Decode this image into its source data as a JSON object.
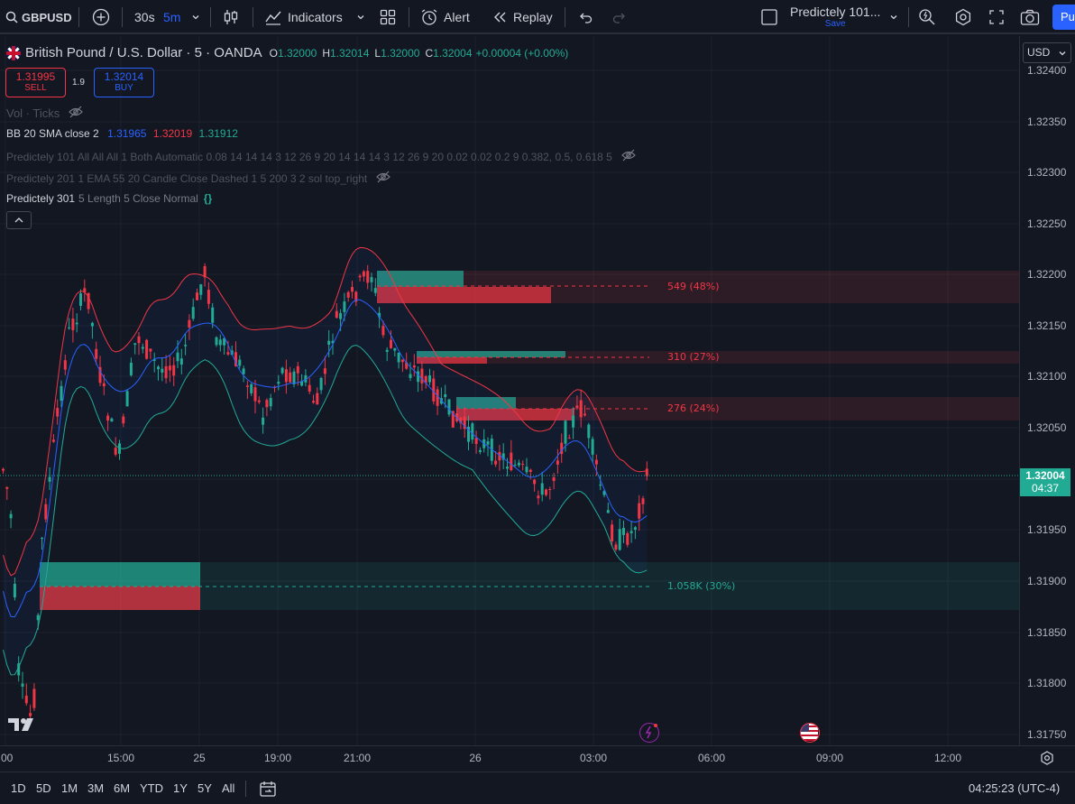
{
  "topbar": {
    "symbol": "GBPUSD",
    "intervals": [
      "30s",
      "5m"
    ],
    "indicators_label": "Indicators",
    "alert_label": "Alert",
    "replay_label": "Replay",
    "layout_name": "Predictely 101...",
    "layout_status": "Save",
    "publish_label": "Pu"
  },
  "legend": {
    "title": "British Pound / U.S. Dollar · 5 · OANDA",
    "o_label": "O",
    "o_value": "1.32000",
    "h_label": "H",
    "h_value": "1.32014",
    "l_label": "L",
    "l_value": "1.32000",
    "c_label": "C",
    "c_value": "1.32004",
    "change": "+0.00004 (+0.00%)",
    "sell_price": "1.31995",
    "sell_label": "SELL",
    "spread": "1.9",
    "buy_price": "1.32014",
    "buy_label": "BUY",
    "vol_line": "Vol · Ticks",
    "bb_name": "BB 20 SMA close 2",
    "bb_basis": "1.31965",
    "bb_upper": "1.32019",
    "bb_lower": "1.31912",
    "p101": "Predictely 101 All All All 1 Both Automatic 0.08 14 14 14 3 12 26 9 20 14 14 14 3 12 26 9 20 0.02 0.02 0.2 9 0.382, 0.5, 0.618 5",
    "p201": "Predictely 201 1 EMA 55 20 Candle Close Dashed 1 5 200 3 2 sol top_right",
    "p301_name": "Predictely 301",
    "p301_params": "5 Length 5 Close Normal",
    "p301_badge": "{}"
  },
  "zones": [
    {
      "label": "549 (48%)",
      "color": "#f23645"
    },
    {
      "label": "310 (27%)",
      "color": "#f23645"
    },
    {
      "label": "276 (24%)",
      "color": "#f23645"
    },
    {
      "label": "1.058K (30%)",
      "color": "#22ab94"
    }
  ],
  "price_axis": {
    "currency": "USD",
    "ticks": [
      "1.32400",
      "1.32350",
      "1.32300",
      "1.32250",
      "1.32200",
      "1.32150",
      "1.32100",
      "1.32050",
      "1.31950",
      "1.31900",
      "1.31850",
      "1.31800",
      "1.31750"
    ],
    "current_price": "1.32004",
    "countdown": "04:37"
  },
  "time_axis": {
    "ticks": [
      ":00",
      "15:00",
      "25",
      "19:00",
      "21:00",
      "26",
      "03:00",
      "06:00",
      "09:00",
      "12:00"
    ]
  },
  "bottombar": {
    "ranges": [
      "1D",
      "5D",
      "1M",
      "3M",
      "6M",
      "YTD",
      "1Y",
      "5Y",
      "All"
    ],
    "clock": "04:25:23 (UTC-4)"
  },
  "colors": {
    "up": "#22ab94",
    "down": "#f23645",
    "bb_basis": "#2962ff",
    "bb_upper": "#f23645",
    "bb_lower": "#22ab94",
    "accent": "#2962ff",
    "background": "#131722"
  }
}
